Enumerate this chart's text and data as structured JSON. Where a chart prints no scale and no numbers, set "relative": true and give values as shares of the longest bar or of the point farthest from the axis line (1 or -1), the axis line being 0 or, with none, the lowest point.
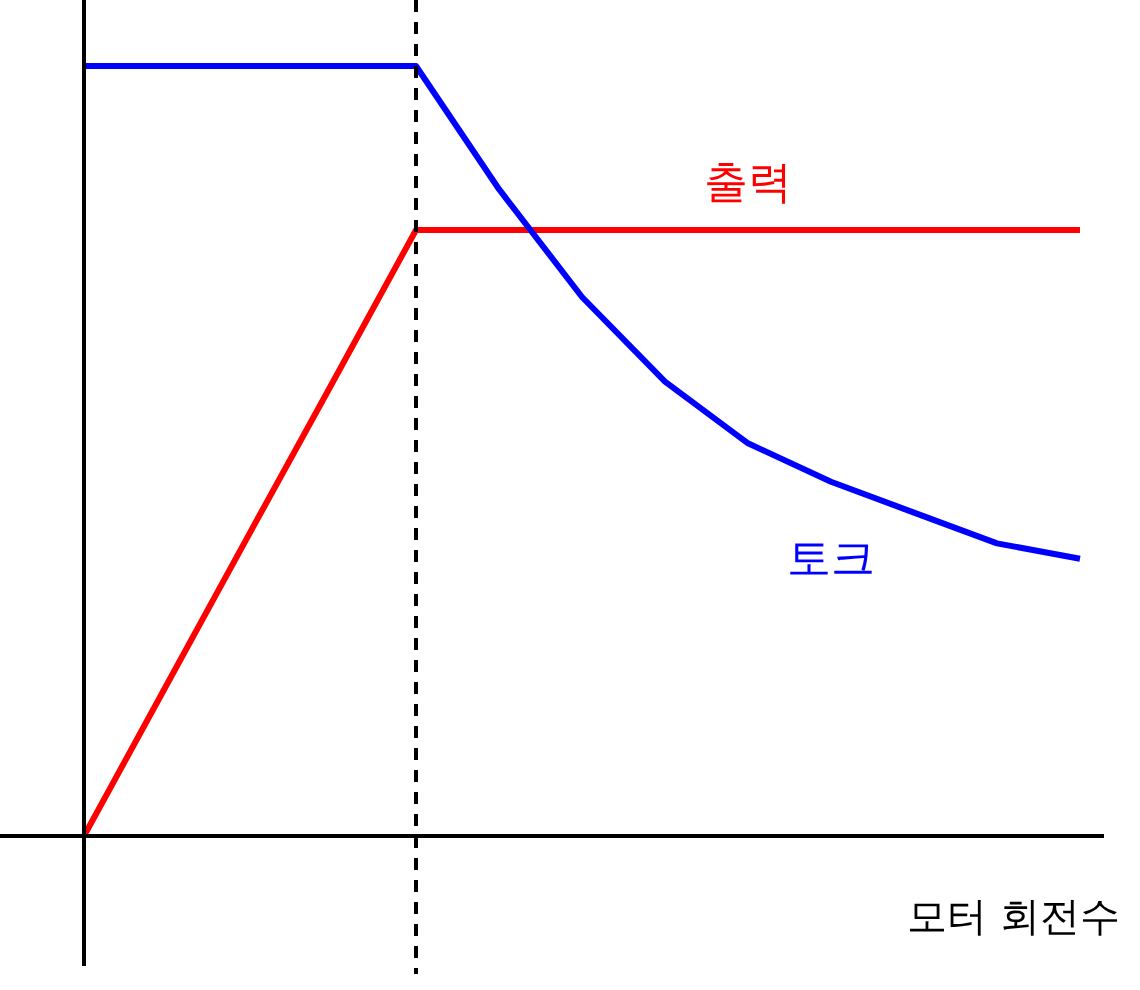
{
  "chart_data": {
    "type": "line",
    "relative": true,
    "xlabel": "모터 회전수",
    "categories": [
      null,
      null,
      null,
      null,
      null,
      null,
      null,
      null,
      null,
      null,
      null,
      null,
      null
    ],
    "series": [
      {
        "name": "토크",
        "color": "#0000ff",
        "values": [
          1,
          1,
          1,
          1,
          1,
          0.84,
          0.7,
          0.59,
          0.51,
          0.46,
          0.42,
          0.38,
          0.36
        ]
      },
      {
        "name": "출력",
        "color": "#ff0000",
        "values": [
          0,
          0.197,
          0.394,
          0.59,
          0.787,
          0.787,
          0.787,
          0.787,
          0.787,
          0.787,
          0.787,
          0.787,
          0.787
        ]
      }
    ],
    "legend": false,
    "marker": "none",
    "line_style": "solid"
  }
}
